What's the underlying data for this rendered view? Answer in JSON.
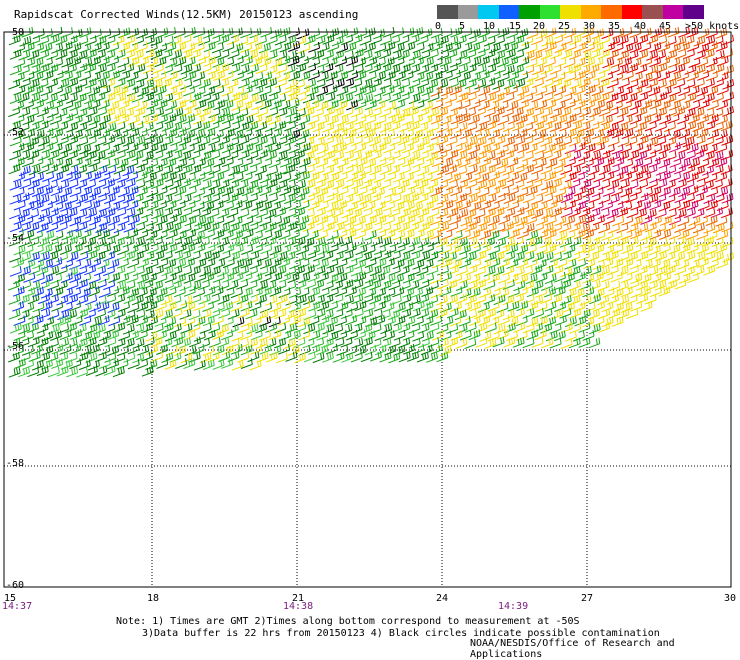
{
  "title": "Rapidscat Corrected Winds(12.5KM) 20150123 ascending",
  "color_scale": {
    "labels": [
      "0",
      "5",
      "10",
      "15",
      "20",
      "25",
      "30",
      "35",
      "40",
      "45",
      ">50 knots"
    ],
    "colors": [
      "#555555",
      "#9a9a9a",
      "#00c8f0",
      "#1060ff",
      "#00a000",
      "#30e030",
      "#f0e000",
      "#ffaa00",
      "#ff6a00",
      "#ff0000",
      "#9a5050",
      "#c000a0",
      "#60008a"
    ]
  },
  "map": {
    "lat_labels": [
      "-50",
      "-52",
      "-54",
      "-56",
      "-58",
      "-60"
    ],
    "lon_labels": [
      "15",
      "18",
      "21",
      "24",
      "27",
      "30"
    ],
    "time_labels": [
      "14:37",
      "14:38",
      "14:39"
    ],
    "lat_range": [
      -60,
      -50
    ],
    "lon_range": [
      15,
      30
    ],
    "grid": "dotted"
  },
  "notes": [
    "Note: 1) Times are GMT 2)Times along bottom correspond to measurement at -50S",
    "3)Data buffer is 22 hrs from 20150123 4) Black circles indicate possible contamination"
  ],
  "credit": "NOAA/NESDIS/Office of Research and Applications"
}
